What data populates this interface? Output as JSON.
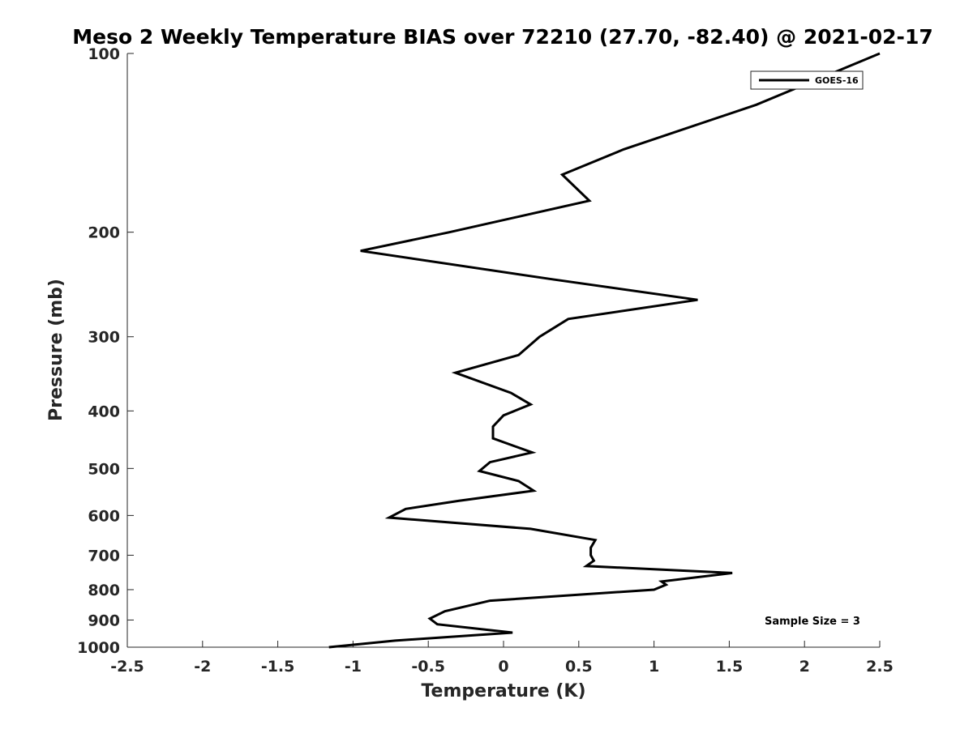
{
  "chart_data": {
    "type": "line",
    "title": "Meso 2 Weekly Temperature BIAS over 72210 (27.70, -82.40) @ 2021-02-17",
    "xlabel": "Temperature (K)",
    "ylabel": "Pressure (mb)",
    "xlim": [
      -2.5,
      2.5
    ],
    "ylim": [
      100,
      1000
    ],
    "y_scale": "log",
    "y_reversed": true,
    "x_ticks": [
      -2.5,
      -2,
      -1.5,
      -1,
      -0.5,
      0,
      0.5,
      1,
      1.5,
      2,
      2.5
    ],
    "x_tick_labels": [
      "-2.5",
      "-2",
      "-1.5",
      "-1",
      "-0.5",
      "0",
      "0.5",
      "1",
      "1.5",
      "2",
      "2.5"
    ],
    "y_ticks": [
      100,
      200,
      300,
      400,
      500,
      600,
      700,
      800,
      900,
      1000
    ],
    "y_tick_labels": [
      "100",
      "200",
      "300",
      "400",
      "500",
      "600",
      "700",
      "800",
      "900",
      "1000"
    ],
    "grid": false,
    "legend_position": "top-right",
    "annotation": "Sample Size = 3",
    "series": [
      {
        "name": "GOES-16",
        "color": "#000000",
        "x": [
          2.5,
          1.68,
          0.8,
          0.39,
          0.57,
          -0.36,
          -0.95,
          0.32,
          1.29,
          0.43,
          0.24,
          0.1,
          -0.32,
          0.05,
          0.18,
          0.0,
          -0.07,
          -0.07,
          0.19,
          -0.09,
          -0.16,
          0.1,
          0.2,
          -0.3,
          -0.65,
          -0.76,
          0.18,
          0.61,
          0.58,
          0.58,
          0.6,
          0.55,
          1.52,
          1.05,
          1.08,
          1.0,
          -0.09,
          -0.39,
          -0.49,
          -0.44,
          0.06,
          -0.72,
          -1.16
        ],
        "y": [
          100,
          122,
          145,
          160,
          177,
          200,
          215,
          240,
          260,
          280,
          300,
          322,
          345,
          373,
          390,
          407,
          425,
          445,
          470,
          488,
          505,
          525,
          545,
          567,
          585,
          605,
          632,
          660,
          680,
          700,
          715,
          730,
          750,
          775,
          785,
          800,
          835,
          870,
          895,
          915,
          945,
          975,
          1000
        ]
      }
    ]
  }
}
